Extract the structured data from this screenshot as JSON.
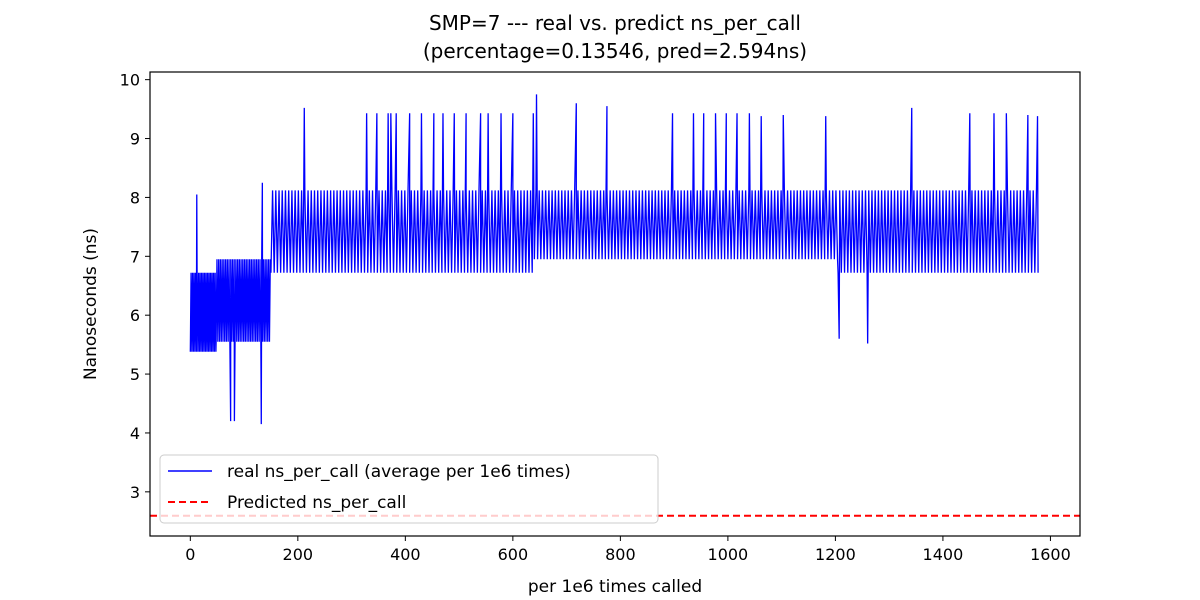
{
  "chart_data": {
    "type": "line",
    "title": "SMP=7 --- real vs. predict ns_per_call",
    "subtitle": "(percentage=0.13546, pred=2.594ns)",
    "xlabel": "per 1e6 times called",
    "ylabel": "Nanoseconds (ns)",
    "xlim": [
      -75,
      1655
    ],
    "ylim": [
      2.25,
      10.13
    ],
    "xticks": [
      0,
      200,
      400,
      600,
      800,
      1000,
      1200,
      1400,
      1600
    ],
    "yticks": [
      3,
      4,
      5,
      6,
      7,
      8,
      9,
      10
    ],
    "grid": false,
    "legend_position": "lower-left",
    "series": [
      {
        "name": "real ns_per_call (average per 1e6 times)",
        "color": "#0000ff",
        "style": "solid",
        "segments": [
          {
            "x_start": 0,
            "x_end": 48,
            "low": 5.38,
            "high": 6.72,
            "step": 1.4
          },
          {
            "x_start": 48,
            "x_end": 150,
            "low": 5.55,
            "high": 6.95,
            "step": 1.6
          },
          {
            "x_start": 150,
            "x_end": 640,
            "low": 6.72,
            "high": 8.12,
            "step": 3
          },
          {
            "x_start": 640,
            "x_end": 1205,
            "low": 6.95,
            "high": 8.12,
            "step": 3
          },
          {
            "x_start": 1205,
            "x_end": 1578,
            "low": 6.72,
            "high": 8.12,
            "step": 3
          }
        ],
        "spikes": [
          {
            "x": 12,
            "y": 8.05
          },
          {
            "x": 75,
            "y": 4.2
          },
          {
            "x": 82,
            "y": 4.2
          },
          {
            "x": 132,
            "y": 4.15
          },
          {
            "x": 134,
            "y": 8.25
          },
          {
            "x": 212,
            "y": 9.52
          },
          {
            "x": 328,
            "y": 9.43
          },
          {
            "x": 347,
            "y": 9.43
          },
          {
            "x": 368,
            "y": 9.43
          },
          {
            "x": 373,
            "y": 9.43
          },
          {
            "x": 383,
            "y": 9.43
          },
          {
            "x": 408,
            "y": 9.43
          },
          {
            "x": 430,
            "y": 9.43
          },
          {
            "x": 453,
            "y": 9.43
          },
          {
            "x": 470,
            "y": 9.43
          },
          {
            "x": 491,
            "y": 9.43
          },
          {
            "x": 513,
            "y": 9.43
          },
          {
            "x": 540,
            "y": 9.43
          },
          {
            "x": 554,
            "y": 9.43
          },
          {
            "x": 578,
            "y": 9.43
          },
          {
            "x": 600,
            "y": 9.43
          },
          {
            "x": 638,
            "y": 9.43
          },
          {
            "x": 644,
            "y": 9.75
          },
          {
            "x": 718,
            "y": 9.6
          },
          {
            "x": 775,
            "y": 9.55
          },
          {
            "x": 897,
            "y": 9.43
          },
          {
            "x": 936,
            "y": 9.43
          },
          {
            "x": 955,
            "y": 9.43
          },
          {
            "x": 977,
            "y": 9.43
          },
          {
            "x": 997,
            "y": 9.43
          },
          {
            "x": 1017,
            "y": 9.43
          },
          {
            "x": 1040,
            "y": 9.43
          },
          {
            "x": 1062,
            "y": 9.38
          },
          {
            "x": 1103,
            "y": 9.4
          },
          {
            "x": 1182,
            "y": 9.38
          },
          {
            "x": 1207,
            "y": 5.6
          },
          {
            "x": 1260,
            "y": 5.52
          },
          {
            "x": 1342,
            "y": 9.52
          },
          {
            "x": 1450,
            "y": 9.43
          },
          {
            "x": 1495,
            "y": 9.43
          },
          {
            "x": 1518,
            "y": 9.43
          },
          {
            "x": 1558,
            "y": 9.4
          },
          {
            "x": 1576,
            "y": 9.38
          }
        ]
      },
      {
        "name": "Predicted ns_per_call",
        "color": "#ff0000",
        "style": "dashed",
        "y": 2.594
      }
    ]
  }
}
